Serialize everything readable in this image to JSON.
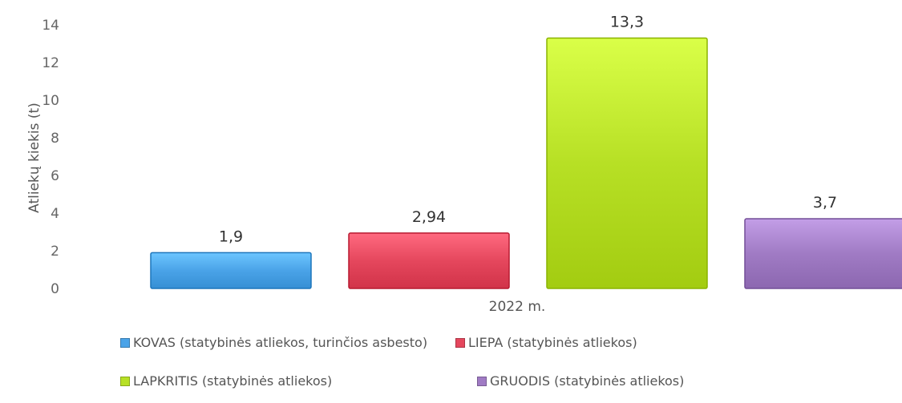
{
  "chart_data": {
    "type": "bar",
    "categories": [
      "2022 m."
    ],
    "ylabel": "Atliekų kiekis (t)",
    "xlabel": "",
    "ylim": [
      0,
      14
    ],
    "yticks": [
      0,
      2,
      4,
      6,
      8,
      10,
      12,
      14
    ],
    "grid": false,
    "legend_position": "bottom",
    "series": [
      {
        "name": "KOVAS (statybinės atliekos, turinčios asbesto)",
        "values": [
          1.9
        ],
        "label": "1,9",
        "color": "#4aa3e8"
      },
      {
        "name": "LIEPA (statybinės atliekos)",
        "values": [
          2.94
        ],
        "label": "2,94",
        "color": "#e5475d"
      },
      {
        "name": "LAPKRITIS (statybinės atliekos)",
        "values": [
          13.3
        ],
        "label": "13,3",
        "color": "#b7e025"
      },
      {
        "name": "GRUODIS (statybinės atliekos)",
        "values": [
          3.7
        ],
        "label": "3,7",
        "color": "#a07bc4"
      }
    ]
  }
}
